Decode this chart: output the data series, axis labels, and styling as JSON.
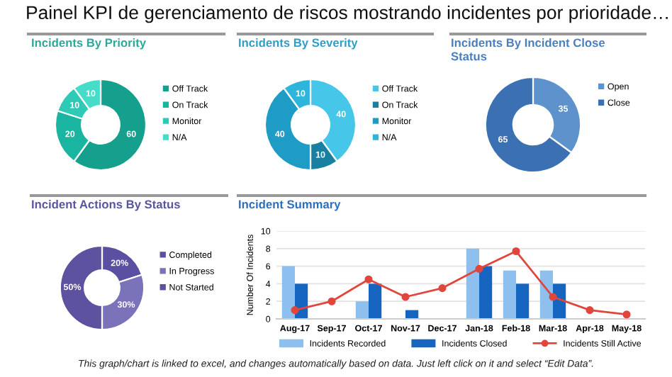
{
  "chart_data": [
    {
      "type": "donut",
      "title": "Incidents By Priority",
      "annotations": [
        "Painel KPI de gerenciamento de riscos mostrando incidentes por prioridade…"
      ],
      "categories": [
        "Off Track",
        "On Track",
        "Monitor",
        "N/A"
      ],
      "values": [
        60,
        20,
        10,
        10
      ],
      "colors": [
        "#14a08c",
        "#1ab5a0",
        "#2ecab5",
        "#45ddca"
      ],
      "data_labels": true,
      "legend": "right"
    },
    {
      "type": "donut",
      "title": "Incidents By Severity",
      "categories": [
        "Off Track",
        "On Track",
        "Monitor",
        "N/A"
      ],
      "values": [
        40,
        10,
        40,
        10
      ],
      "colors": [
        "#46c6e8",
        "#1a80a2",
        "#1f9cc6",
        "#2eb5dc"
      ],
      "data_labels": true,
      "legend": "right"
    },
    {
      "type": "donut",
      "title": "Incidents By Incident Close\nStatus",
      "categories": [
        "Open",
        "Close"
      ],
      "values": [
        35,
        65
      ],
      "colors": [
        "#5e92cc",
        "#3b70b2"
      ],
      "data_labels": true,
      "legend": "right"
    },
    {
      "type": "donut",
      "title": "Incident Actions By Status",
      "categories": [
        "Completed",
        "In Progress",
        "Not Started"
      ],
      "values": [
        20,
        30,
        50
      ],
      "value_labels": [
        "20%",
        "30%",
        "50%"
      ],
      "colors": [
        "#5a50a2",
        "#7a73b9",
        "#5c52a0"
      ],
      "legend": "right"
    },
    {
      "type": "bar",
      "title": "Incident Summary",
      "ylabel": "Number Of Incidents",
      "annotations": [
        "This graph/chart is linked to excel, and changes automatically based on data. Just left click on it and select “Edit Data”."
      ],
      "categories": [
        "Aug-17",
        "Sep-17",
        "Oct-17",
        "Nov-17",
        "Dec-17",
        "Jan-18",
        "Feb-18",
        "Mar-18",
        "Apr-18",
        "May-18"
      ],
      "ylim": [
        0,
        10
      ],
      "yticks": [
        0,
        2,
        4,
        6,
        8,
        10
      ],
      "grid": "y",
      "legend": "bottom",
      "series": [
        {
          "name": "Incidents Recorded",
          "color": "#8dc0ee",
          "values": [
            6,
            null,
            2,
            null,
            null,
            8,
            5.5,
            5.5,
            null,
            null
          ]
        },
        {
          "name": "Incidents Closed",
          "color": "#1565c0",
          "values": [
            4,
            null,
            4,
            1,
            null,
            6,
            4,
            4,
            null,
            null
          ]
        },
        {
          "name": "Incidents Still Active",
          "type": "line",
          "marker": "circle",
          "color": "#e0463c",
          "values": [
            1,
            2,
            4.5,
            2.5,
            3.5,
            5.7,
            7.7,
            2.5,
            1,
            0.5
          ]
        }
      ]
    }
  ]
}
